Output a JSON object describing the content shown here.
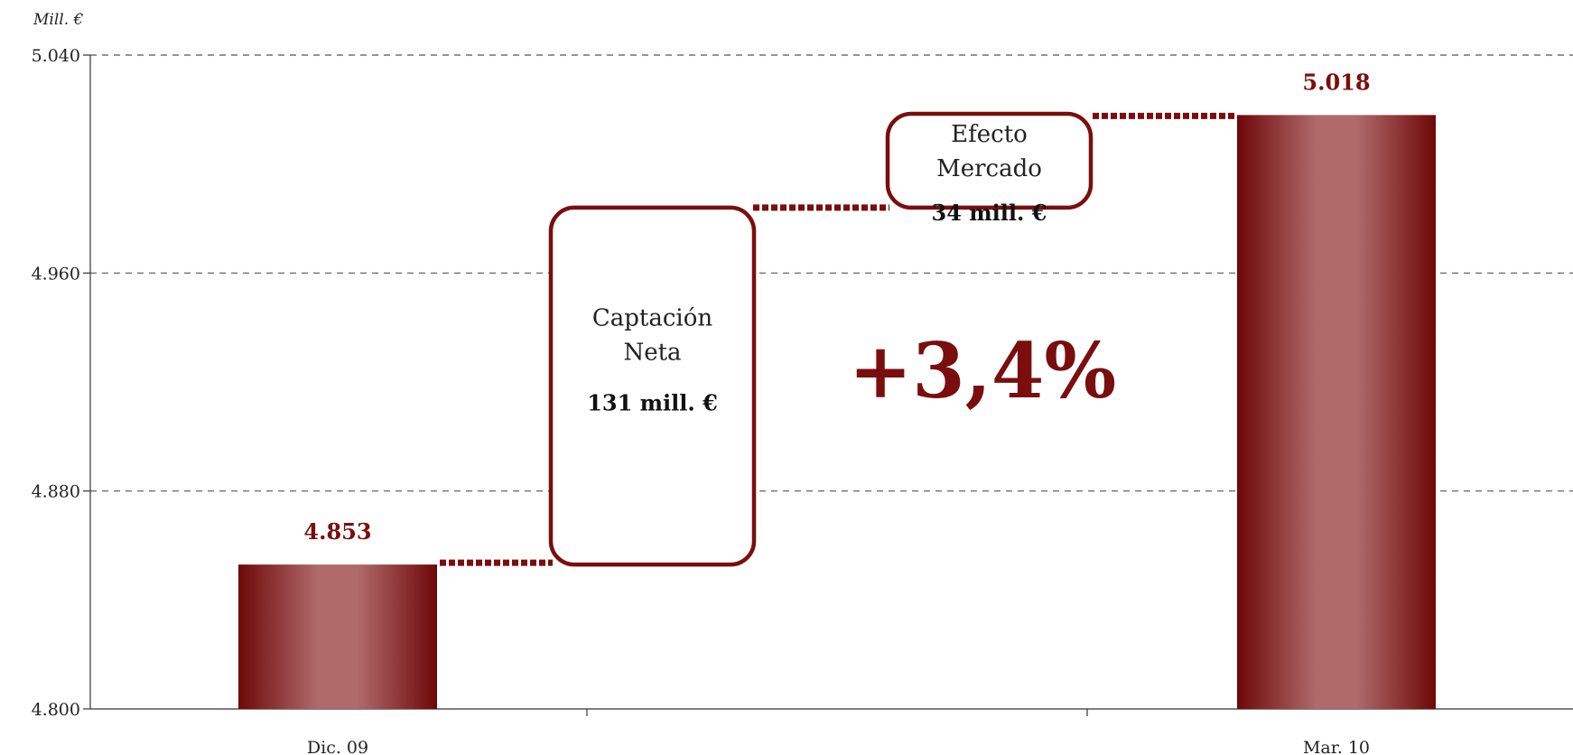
{
  "chart_data": {
    "type": "bar",
    "unit_label": "Mill. €",
    "categories": [
      "Dic. 09",
      "Mar. 10"
    ],
    "values": [
      4853,
      5018
    ],
    "value_labels": [
      "4.853",
      "5.018"
    ],
    "ylim": [
      4800,
      5040
    ],
    "yticks": [
      4800,
      4880,
      4960,
      5040
    ],
    "ytick_labels": [
      "4.800",
      "4.880",
      "4.960",
      "5.040"
    ],
    "grid": true,
    "bar_color": "#7a0e0e",
    "steps": [
      {
        "line1": "Captación",
        "line2": "Neta",
        "value_text": "131 mill.  €",
        "from": 4853,
        "to": 4984
      },
      {
        "line1": "Efecto",
        "line2": "Mercado",
        "value_text": "34 mill.  €",
        "from": 4984,
        "to": 5018
      }
    ],
    "annotation": "+3,4%"
  }
}
